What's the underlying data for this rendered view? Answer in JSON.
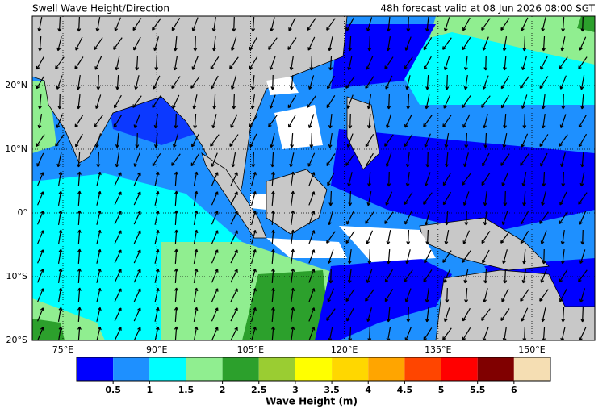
{
  "title": "Swell Wave Height/Direction",
  "valid_time": "48h forecast valid at 08 Jun 2026 08:00 SGT",
  "map": {
    "lon_labels": [
      "75°E",
      "90°E",
      "105°E",
      "120°E",
      "135°E",
      "150°E"
    ],
    "lat_labels": [
      "20°N",
      "10°N",
      "0°",
      "10°S",
      "20°S"
    ]
  },
  "colorbar": {
    "colors": [
      "#0000ff",
      "#1e90ff",
      "#00ffff",
      "#90ee90",
      "#2ca02c",
      "#9acd32",
      "#ffff00",
      "#ffd700",
      "#ffa500",
      "#ff4500",
      "#ff0000",
      "#800000",
      "#f5deb3"
    ],
    "labels": [
      "0.5",
      "1",
      "1.5",
      "2",
      "2.5",
      "3",
      "3.5",
      "4",
      "4.5",
      "5",
      "5.5",
      "6"
    ],
    "title": "Wave Height (m)"
  }
}
